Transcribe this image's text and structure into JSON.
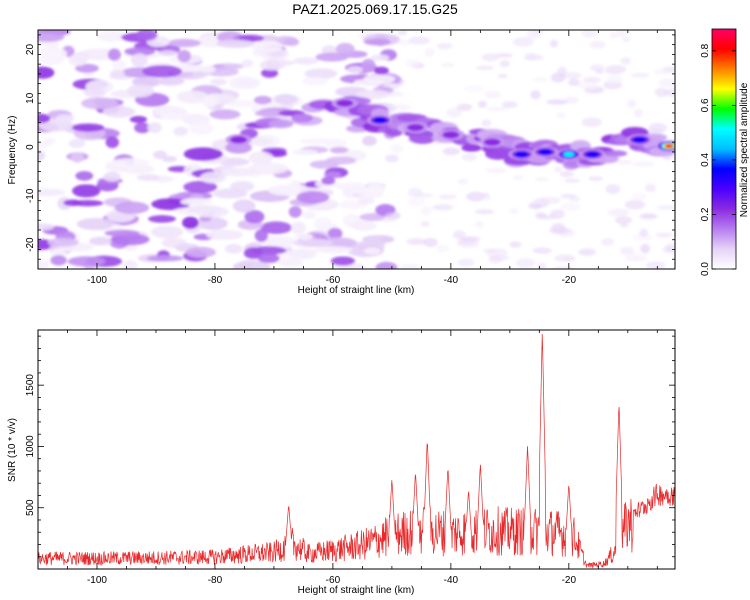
{
  "title": "PAZ1.2025.069.17.15.G25",
  "chart_data": [
    {
      "type": "heatmap",
      "xlabel": "Height of straight line (km)",
      "ylabel": "Frequency (Hz)",
      "xlim": [
        -110,
        -2
      ],
      "ylim": [
        -25,
        24
      ],
      "x_ticks": [
        -100,
        -80,
        -60,
        -40,
        -20
      ],
      "y_ticks": [
        -20,
        -10,
        0,
        10,
        20
      ],
      "colorbar": {
        "label": "Normalized spectral amplitude",
        "range": [
          0,
          0.88
        ],
        "ticks": [
          0.0,
          0.2,
          0.4,
          0.6,
          0.8
        ],
        "stops": [
          "#ffffff",
          "#e6d3f7",
          "#b77df0",
          "#8a2be2",
          "#4b00ff",
          "#0000ff",
          "#00bfff",
          "#00ffff",
          "#00ff00",
          "#ffff00",
          "#ff8000",
          "#ff0000",
          "#ff0066"
        ]
      },
      "peaks": [
        {
          "x": -76,
          "y": 1.5,
          "amp": 0.3
        },
        {
          "x": -58,
          "y": 9,
          "amp": 0.25
        },
        {
          "x": -52,
          "y": 5.5,
          "amp": 0.42
        },
        {
          "x": -46,
          "y": 4,
          "amp": 0.3
        },
        {
          "x": -40,
          "y": 2.5,
          "amp": 0.3
        },
        {
          "x": -33,
          "y": 1,
          "amp": 0.32
        },
        {
          "x": -28,
          "y": -1.5,
          "amp": 0.35
        },
        {
          "x": -24,
          "y": -1,
          "amp": 0.4
        },
        {
          "x": -20,
          "y": -1.5,
          "amp": 0.55
        },
        {
          "x": -16,
          "y": -1.5,
          "amp": 0.45
        },
        {
          "x": -8,
          "y": 1.5,
          "amp": 0.45
        },
        {
          "x": -3,
          "y": 0.2,
          "amp": 0.85
        }
      ]
    },
    {
      "type": "line",
      "xlabel": "Height of straight line (km)",
      "ylabel": "SNR (10 * v/v)",
      "xlim": [
        -110,
        -2
      ],
      "ylim": [
        0,
        1950
      ],
      "x_ticks": [
        -100,
        -80,
        -60,
        -40,
        -20
      ],
      "y_ticks": [
        500,
        1000,
        1500
      ],
      "color": "#e8282a",
      "envelope_points": [
        {
          "x": -110,
          "y": 120
        },
        {
          "x": -100,
          "y": 120
        },
        {
          "x": -90,
          "y": 125
        },
        {
          "x": -80,
          "y": 135
        },
        {
          "x": -75,
          "y": 165
        },
        {
          "x": -70,
          "y": 185
        },
        {
          "x": -67,
          "y": 290
        },
        {
          "x": -64,
          "y": 170
        },
        {
          "x": -60,
          "y": 210
        },
        {
          "x": -55,
          "y": 270
        },
        {
          "x": -50,
          "y": 380
        },
        {
          "x": -45,
          "y": 440
        },
        {
          "x": -40,
          "y": 400
        },
        {
          "x": -35,
          "y": 440
        },
        {
          "x": -30,
          "y": 420
        },
        {
          "x": -27,
          "y": 430
        },
        {
          "x": -22,
          "y": 410
        },
        {
          "x": -19,
          "y": 360
        },
        {
          "x": -17,
          "y": 40
        },
        {
          "x": -14,
          "y": 60
        },
        {
          "x": -12,
          "y": 220
        },
        {
          "x": -10,
          "y": 530
        },
        {
          "x": -8,
          "y": 500
        },
        {
          "x": -5,
          "y": 640
        },
        {
          "x": -2,
          "y": 640
        }
      ],
      "spikes": [
        {
          "x": -67.5,
          "y": 530
        },
        {
          "x": -50,
          "y": 740
        },
        {
          "x": -46,
          "y": 800
        },
        {
          "x": -44,
          "y": 1070
        },
        {
          "x": -40.5,
          "y": 840
        },
        {
          "x": -37,
          "y": 650
        },
        {
          "x": -35,
          "y": 870
        },
        {
          "x": -27,
          "y": 1010
        },
        {
          "x": -24.5,
          "y": 1950
        },
        {
          "x": -20,
          "y": 700
        },
        {
          "x": -11.5,
          "y": 1370
        }
      ]
    }
  ]
}
